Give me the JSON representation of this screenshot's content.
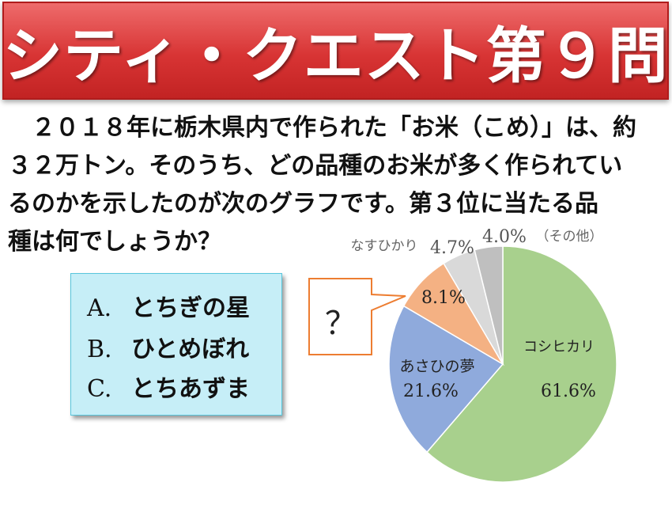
{
  "title": "シティ・クエスト第９問",
  "question": {
    "lines": [
      "２０１８年に栃木県内で作られた「お米（こめ）」は、約",
      "３２万トン。そのうち、どの品種のお米が多く作られてい",
      "るのかを示したのが次のグラフです。第３位に当たる品",
      "種は何でしょうか？"
    ]
  },
  "choices": [
    {
      "letter": "A.",
      "text": "とちぎの星"
    },
    {
      "letter": "B.",
      "text": "ひとめぼれ"
    },
    {
      "letter": "C.",
      "text": "とちあずま"
    }
  ],
  "callout": {
    "text": "？"
  },
  "chart_data": {
    "type": "pie",
    "slices": [
      {
        "label": "コシヒカリ",
        "display_value": "61.6%",
        "value": 61.6,
        "color": "#a8d08d"
      },
      {
        "label": "あさひの夢",
        "display_value": "21.6%",
        "value": 21.6,
        "color": "#8faadc"
      },
      {
        "label": "",
        "display_value": "8.1%",
        "value": 8.1,
        "color": "#f4b183"
      },
      {
        "label": "なすひかり",
        "display_value": "4.7%",
        "value": 4.7,
        "color": "#d9d9d9"
      },
      {
        "label": "（その他）",
        "display_value": "4.0%",
        "value": 4.0,
        "color": "#bfbfbf"
      }
    ]
  },
  "colors": {
    "title_bg": "#d83434",
    "choices_bg": "#c6eef7",
    "callout_border": "#ed7d31"
  }
}
